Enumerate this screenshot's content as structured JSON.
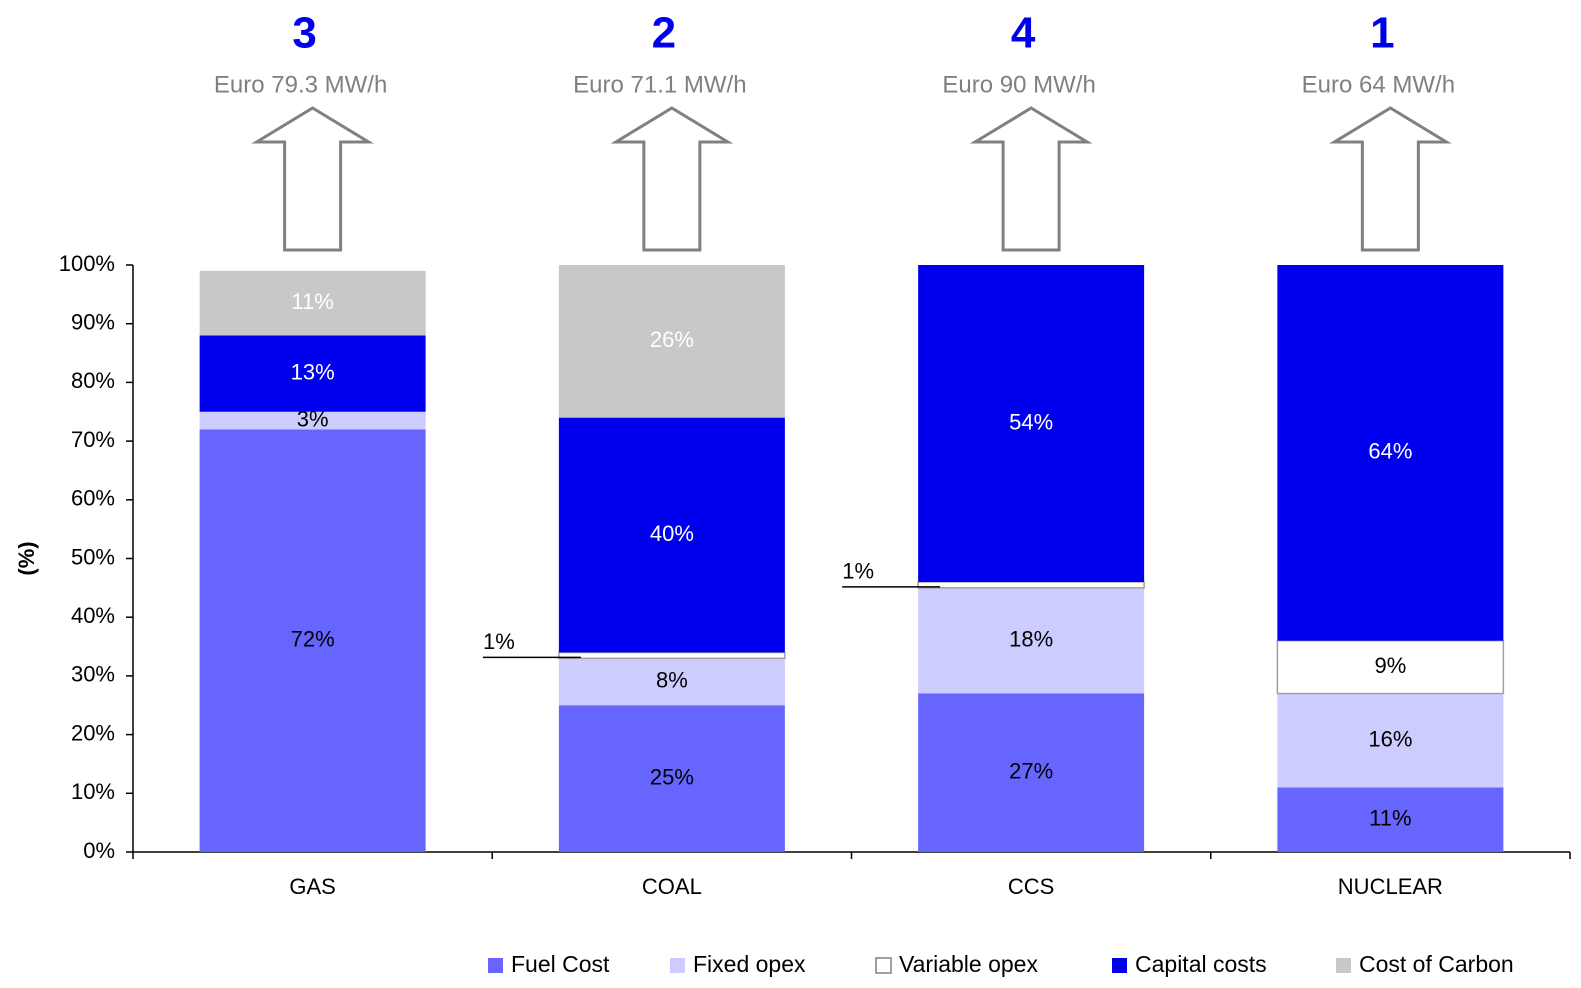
{
  "chart_data": {
    "type": "bar",
    "stacked": true,
    "normalized": true,
    "categories": [
      "GAS",
      "COAL",
      "CCS",
      "NUCLEAR"
    ],
    "series": [
      {
        "name": "Fuel Cost",
        "color": "#6666ff",
        "label_color": "#000000",
        "values": [
          72,
          25,
          27,
          11
        ]
      },
      {
        "name": "Fixed opex",
        "color": "#ccccff",
        "label_color": "#000000",
        "values": [
          3,
          8,
          18,
          16
        ]
      },
      {
        "name": "Variable opex",
        "color": "#ffffff",
        "label_color": "#000000",
        "values": [
          0,
          1,
          1,
          9
        ]
      },
      {
        "name": "Capital costs",
        "color": "#0000ee",
        "label_color": "#ffffff",
        "values": [
          13,
          40,
          54,
          64
        ]
      },
      {
        "name": "Cost of Carbon",
        "color": "#c8c8c8",
        "label_color": "#ffffff",
        "values": [
          11,
          26,
          0,
          0
        ]
      }
    ],
    "data_labels": [
      [
        "72%",
        "3%",
        "",
        "13%",
        "11%"
      ],
      [
        "25%",
        "8%",
        "1%",
        "40%",
        "26%"
      ],
      [
        "27%",
        "18%",
        "1%",
        "54%",
        ""
      ],
      [
        "11%",
        "16%",
        "9%",
        "64%",
        ""
      ]
    ],
    "rank_labels": [
      "3",
      "2",
      "4",
      "1"
    ],
    "cost_labels": [
      "Euro 79.3 MW/h",
      "Euro 71.1 MW/h",
      "Euro 90 MW/h",
      "Euro 64 MW/h"
    ],
    "ylabel": "(%)",
    "ylim": [
      0,
      100
    ],
    "yticks": [
      "0%",
      "10%",
      "20%",
      "30%",
      "40%",
      "50%",
      "60%",
      "70%",
      "80%",
      "90%",
      "100%"
    ],
    "legend_position": "bottom-right",
    "grid": false,
    "colors": {
      "rank": "#0000ee",
      "cost_text": "#808080",
      "arrow_stroke": "#808080"
    }
  }
}
